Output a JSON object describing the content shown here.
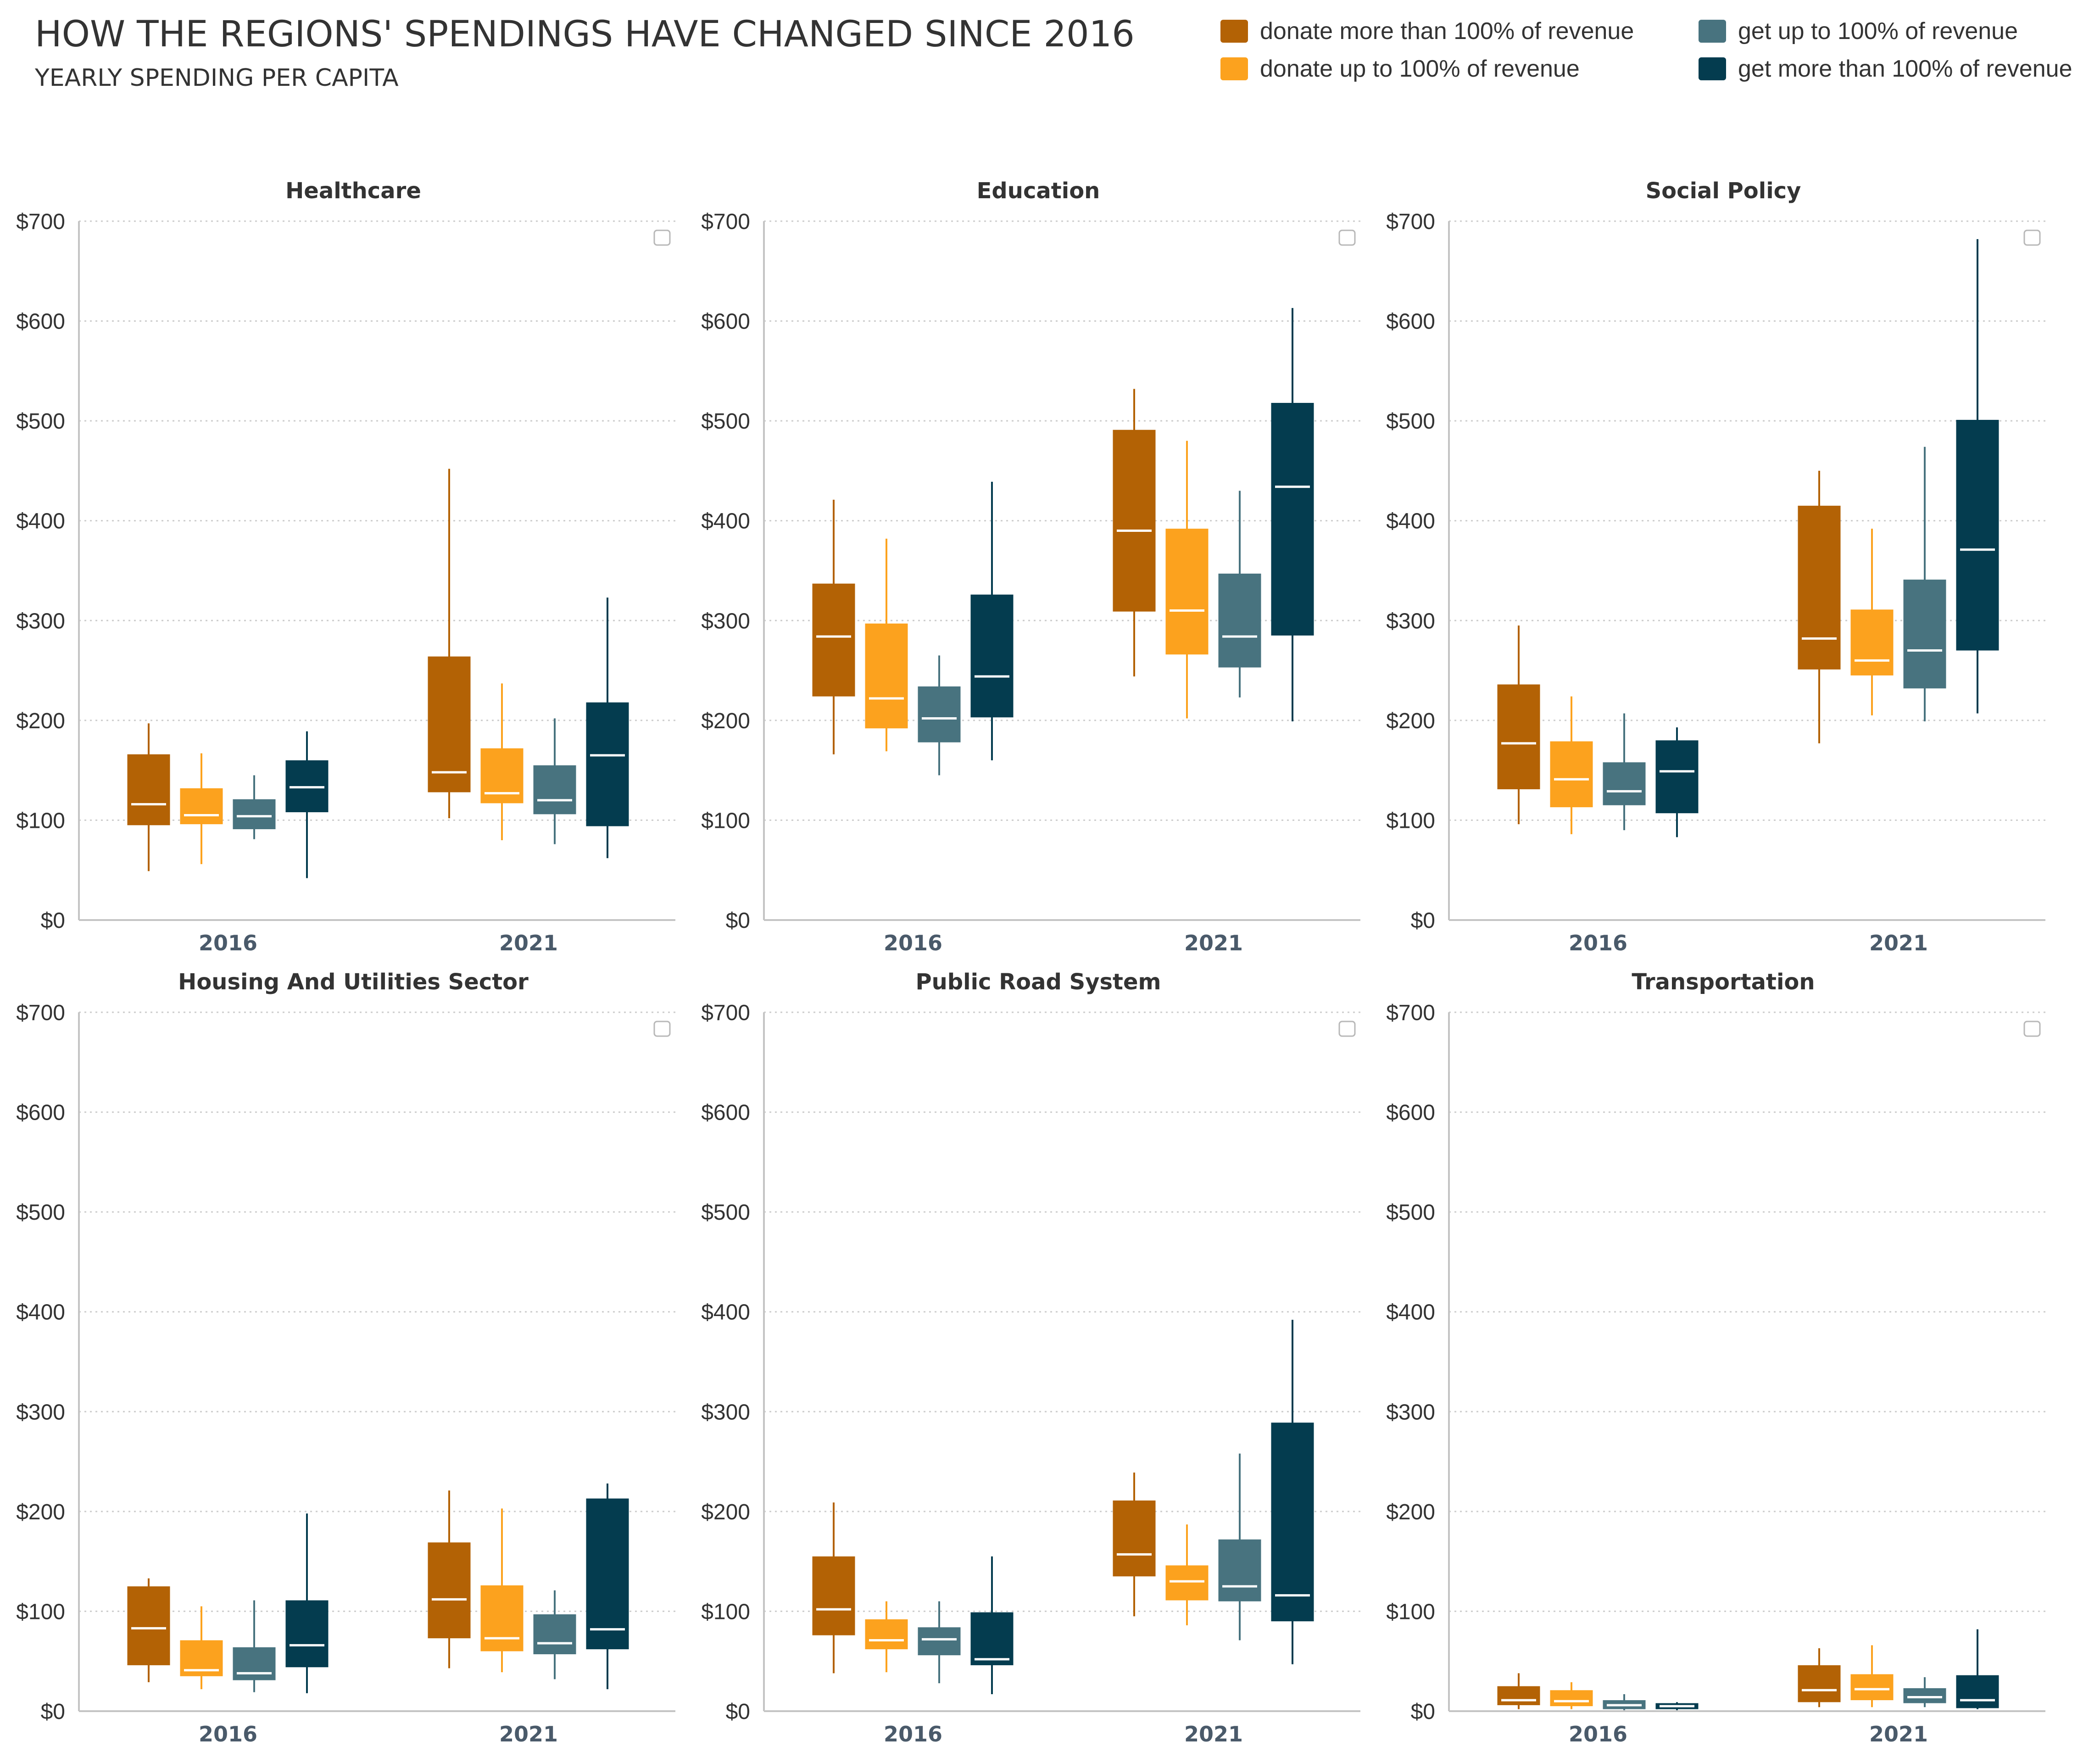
{
  "title": "HOW THE REGIONS' SPENDINGS HAVE CHANGED SINCE 2016",
  "subtitle": "YEARLY SPENDING PER CAPITA",
  "legend": [
    {
      "label": "donate more than 100% of revenue",
      "color": "#b36205"
    },
    {
      "label": "donate up to 100% of revenue",
      "color": "#fca21e"
    },
    {
      "label": "get up to 100% of revenue",
      "color": "#48737f"
    },
    {
      "label": "get more than 100% of revenue",
      "color": "#043c4f"
    }
  ],
  "chart_data": [
    {
      "type": "boxplot",
      "title": "Healthcare",
      "categories": [
        "2016",
        "2021"
      ],
      "ylim": [
        0,
        700
      ],
      "yticks": [
        "$0",
        "$100",
        "$200",
        "$300",
        "$400",
        "$500",
        "$600",
        "$700"
      ],
      "grid": true,
      "series": [
        {
          "name": "donate more than 100% of revenue",
          "boxes": [
            {
              "min": 49,
              "q1": 95,
              "median": 116,
              "q3": 166,
              "max": 197
            },
            {
              "min": 102,
              "q1": 128,
              "median": 148,
              "q3": 264,
              "max": 452
            }
          ]
        },
        {
          "name": "donate up to 100% of revenue",
          "boxes": [
            {
              "min": 56,
              "q1": 96,
              "median": 105,
              "q3": 132,
              "max": 167
            },
            {
              "min": 80,
              "q1": 117,
              "median": 127,
              "q3": 172,
              "max": 237
            }
          ]
        },
        {
          "name": "get up to 100% of revenue",
          "boxes": [
            {
              "min": 81,
              "q1": 91,
              "median": 104,
              "q3": 121,
              "max": 145
            },
            {
              "min": 76,
              "q1": 106,
              "median": 120,
              "q3": 155,
              "max": 202
            }
          ]
        },
        {
          "name": "get more than 100% of revenue",
          "boxes": [
            {
              "min": 42,
              "q1": 108,
              "median": 133,
              "q3": 160,
              "max": 189
            },
            {
              "min": 62,
              "q1": 94,
              "median": 165,
              "q3": 218,
              "max": 323
            }
          ]
        }
      ]
    },
    {
      "type": "boxplot",
      "title": "Education",
      "categories": [
        "2016",
        "2021"
      ],
      "ylim": [
        0,
        700
      ],
      "yticks": [
        "$0",
        "$100",
        "$200",
        "$300",
        "$400",
        "$500",
        "$600",
        "$700"
      ],
      "grid": true,
      "series": [
        {
          "name": "donate more than 100% of revenue",
          "boxes": [
            {
              "min": 166,
              "q1": 224,
              "median": 284,
              "q3": 337,
              "max": 421
            },
            {
              "min": 244,
              "q1": 309,
              "median": 390,
              "q3": 491,
              "max": 532
            }
          ]
        },
        {
          "name": "donate up to 100% of revenue",
          "boxes": [
            {
              "min": 169,
              "q1": 192,
              "median": 222,
              "q3": 297,
              "max": 382
            },
            {
              "min": 202,
              "q1": 266,
              "median": 310,
              "q3": 392,
              "max": 480
            }
          ]
        },
        {
          "name": "get up to 100% of revenue",
          "boxes": [
            {
              "min": 145,
              "q1": 178,
              "median": 202,
              "q3": 234,
              "max": 265
            },
            {
              "min": 223,
              "q1": 253,
              "median": 284,
              "q3": 347,
              "max": 430
            }
          ]
        },
        {
          "name": "get more than 100% of revenue",
          "boxes": [
            {
              "min": 160,
              "q1": 203,
              "median": 244,
              "q3": 326,
              "max": 439
            },
            {
              "min": 199,
              "q1": 285,
              "median": 434,
              "q3": 518,
              "max": 613
            }
          ]
        }
      ]
    },
    {
      "type": "boxplot",
      "title": "Social Policy",
      "categories": [
        "2016",
        "2021"
      ],
      "ylim": [
        0,
        700
      ],
      "yticks": [
        "$0",
        "$100",
        "$200",
        "$300",
        "$400",
        "$500",
        "$600",
        "$700"
      ],
      "grid": true,
      "series": [
        {
          "name": "donate more than 100% of revenue",
          "boxes": [
            {
              "min": 96,
              "q1": 131,
              "median": 177,
              "q3": 236,
              "max": 295
            },
            {
              "min": 177,
              "q1": 251,
              "median": 282,
              "q3": 415,
              "max": 450
            }
          ]
        },
        {
          "name": "donate up to 100% of revenue",
          "boxes": [
            {
              "min": 86,
              "q1": 113,
              "median": 141,
              "q3": 179,
              "max": 224
            },
            {
              "min": 205,
              "q1": 245,
              "median": 260,
              "q3": 311,
              "max": 392
            }
          ]
        },
        {
          "name": "get up to 100% of revenue",
          "boxes": [
            {
              "min": 90,
              "q1": 115,
              "median": 129,
              "q3": 158,
              "max": 207
            },
            {
              "min": 199,
              "q1": 232,
              "median": 270,
              "q3": 341,
              "max": 474
            }
          ]
        },
        {
          "name": "get more than 100% of revenue",
          "boxes": [
            {
              "min": 83,
              "q1": 107,
              "median": 149,
              "q3": 180,
              "max": 193
            },
            {
              "min": 207,
              "q1": 270,
              "median": 371,
              "q3": 501,
              "max": 682
            }
          ]
        }
      ]
    },
    {
      "type": "boxplot",
      "title": "Housing And Utilities Sector",
      "categories": [
        "2016",
        "2021"
      ],
      "ylim": [
        0,
        700
      ],
      "yticks": [
        "$0",
        "$100",
        "$200",
        "$300",
        "$400",
        "$500",
        "$600",
        "$700"
      ],
      "grid": true,
      "series": [
        {
          "name": "donate more than 100% of revenue",
          "boxes": [
            {
              "min": 29,
              "q1": 46,
              "median": 83,
              "q3": 125,
              "max": 133
            },
            {
              "min": 43,
              "q1": 73,
              "median": 112,
              "q3": 169,
              "max": 221
            }
          ]
        },
        {
          "name": "donate up to 100% of revenue",
          "boxes": [
            {
              "min": 22,
              "q1": 35,
              "median": 41,
              "q3": 71,
              "max": 105
            },
            {
              "min": 39,
              "q1": 60,
              "median": 73,
              "q3": 126,
              "max": 203
            }
          ]
        },
        {
          "name": "get up to 100% of revenue",
          "boxes": [
            {
              "min": 19,
              "q1": 31,
              "median": 38,
              "q3": 64,
              "max": 111
            },
            {
              "min": 32,
              "q1": 57,
              "median": 68,
              "q3": 97,
              "max": 121
            }
          ]
        },
        {
          "name": "get more than 100% of revenue",
          "boxes": [
            {
              "min": 18,
              "q1": 44,
              "median": 66,
              "q3": 111,
              "max": 198
            },
            {
              "min": 22,
              "q1": 62,
              "median": 82,
              "q3": 213,
              "max": 228
            }
          ]
        }
      ]
    },
    {
      "type": "boxplot",
      "title": "Public Road System",
      "categories": [
        "2016",
        "2021"
      ],
      "ylim": [
        0,
        700
      ],
      "yticks": [
        "$0",
        "$100",
        "$200",
        "$300",
        "$400",
        "$500",
        "$600",
        "$700"
      ],
      "grid": true,
      "series": [
        {
          "name": "donate more than 100% of revenue",
          "boxes": [
            {
              "min": 38,
              "q1": 76,
              "median": 102,
              "q3": 155,
              "max": 209
            },
            {
              "min": 95,
              "q1": 135,
              "median": 157,
              "q3": 211,
              "max": 239
            }
          ]
        },
        {
          "name": "donate up to 100% of revenue",
          "boxes": [
            {
              "min": 39,
              "q1": 62,
              "median": 71,
              "q3": 92,
              "max": 110
            },
            {
              "min": 86,
              "q1": 111,
              "median": 130,
              "q3": 146,
              "max": 187
            }
          ]
        },
        {
          "name": "get up to 100% of revenue",
          "boxes": [
            {
              "min": 28,
              "q1": 56,
              "median": 72,
              "q3": 84,
              "max": 110
            },
            {
              "min": 71,
              "q1": 110,
              "median": 125,
              "q3": 172,
              "max": 258
            }
          ]
        },
        {
          "name": "get more than 100% of revenue",
          "boxes": [
            {
              "min": 17,
              "q1": 46,
              "median": 52,
              "q3": 99,
              "max": 155
            },
            {
              "min": 47,
              "q1": 90,
              "median": 116,
              "q3": 289,
              "max": 392
            }
          ]
        }
      ]
    },
    {
      "type": "boxplot",
      "title": "Transportation",
      "categories": [
        "2016",
        "2021"
      ],
      "ylim": [
        0,
        700
      ],
      "yticks": [
        "$0",
        "$100",
        "$200",
        "$300",
        "$400",
        "$500",
        "$600",
        "$700"
      ],
      "grid": true,
      "series": [
        {
          "name": "donate more than 100% of revenue",
          "boxes": [
            {
              "min": 2,
              "q1": 6,
              "median": 11,
              "q3": 25,
              "max": 38
            },
            {
              "min": 4,
              "q1": 9,
              "median": 21,
              "q3": 46,
              "max": 63
            }
          ]
        },
        {
          "name": "donate up to 100% of revenue",
          "boxes": [
            {
              "min": 2,
              "q1": 5,
              "median": 10,
              "q3": 21,
              "max": 29
            },
            {
              "min": 4,
              "q1": 11,
              "median": 22,
              "q3": 37,
              "max": 66
            }
          ]
        },
        {
          "name": "get up to 100% of revenue",
          "boxes": [
            {
              "min": 1,
              "q1": 2,
              "median": 6,
              "q3": 11,
              "max": 17
            },
            {
              "min": 4,
              "q1": 8,
              "median": 14,
              "q3": 23,
              "max": 34
            }
          ]
        },
        {
          "name": "get more than 100% of revenue",
          "boxes": [
            {
              "min": 1,
              "q1": 2,
              "median": 5,
              "q3": 8,
              "max": 9
            },
            {
              "min": 2,
              "q1": 3,
              "median": 11,
              "q3": 36,
              "max": 82
            }
          ]
        }
      ]
    }
  ]
}
